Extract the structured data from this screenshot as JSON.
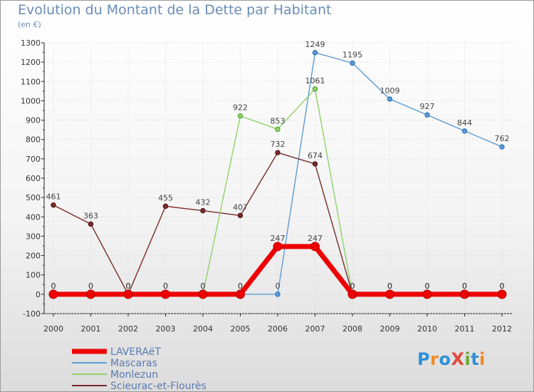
{
  "title": "Evolution du Montant de la Dette par Habitant",
  "unit": "(en €)",
  "logo": {
    "text": "ProXiti",
    "colors": [
      "#2f8fd8",
      "#f08a24",
      "#2f8fd8",
      "#e04a3a",
      "#6aa832",
      "#2f8fd8",
      "#f08a24"
    ]
  },
  "chart_data": {
    "type": "line",
    "x": [
      "2000",
      "2001",
      "2002",
      "2003",
      "2004",
      "2005",
      "2006",
      "2007",
      "2008",
      "2009",
      "2010",
      "2011",
      "2012"
    ],
    "y_ticks": [
      "1300",
      "1200",
      "1100",
      "1000",
      "900",
      "800",
      "700",
      "600",
      "500",
      "400",
      "300",
      "200",
      "100",
      "0",
      "-100"
    ],
    "ylim": [
      -100,
      1300
    ],
    "series": [
      {
        "name": "LAVERAëT",
        "color": "#ee0000",
        "values": [
          0,
          0,
          0,
          0,
          0,
          0,
          247,
          247,
          0,
          0,
          0,
          0,
          0
        ]
      },
      {
        "name": "Mascaras",
        "color": "#5b9bd5",
        "values": [
          null,
          null,
          null,
          null,
          null,
          0,
          0,
          1249,
          1195,
          1009,
          927,
          844,
          762
        ]
      },
      {
        "name": "Monlezun",
        "color": "#8fd16a",
        "values": [
          0,
          0,
          0,
          0,
          0,
          922,
          853,
          1061,
          0,
          0,
          0,
          0,
          0
        ]
      },
      {
        "name": "Scieurac-et-Flourès",
        "color": "#7a2a2a",
        "values": [
          461,
          363,
          0,
          455,
          432,
          407,
          732,
          674,
          0,
          0,
          0,
          0,
          0
        ]
      }
    ]
  }
}
